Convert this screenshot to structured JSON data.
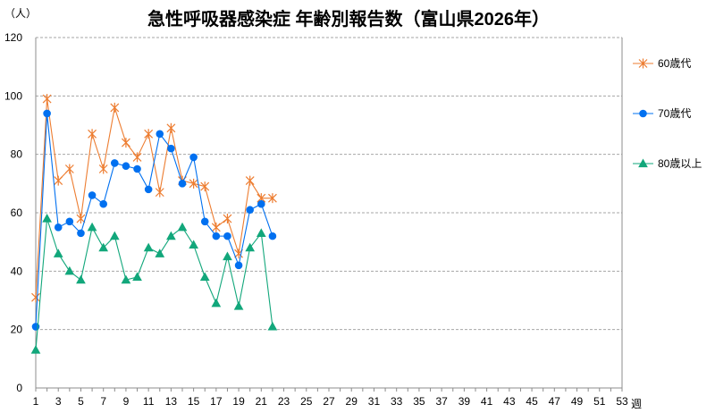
{
  "chart_data": {
    "type": "line",
    "title": "急性呼吸器感染症 年齢別報告数（富山県2026年）",
    "y_unit": "（人）",
    "x_unit": "週",
    "ylim": [
      0,
      120
    ],
    "yticks": [
      0,
      20,
      40,
      60,
      80,
      100,
      120
    ],
    "xlim": [
      1,
      53
    ],
    "xticks": [
      1,
      3,
      5,
      7,
      9,
      11,
      13,
      15,
      17,
      19,
      21,
      23,
      25,
      27,
      29,
      31,
      33,
      35,
      37,
      39,
      41,
      43,
      45,
      47,
      49,
      51,
      53
    ],
    "grid": "horizontal dashed",
    "legend_position": "right",
    "series": [
      {
        "name": "60歳代",
        "color": "#ED7D31",
        "marker": "asterisk",
        "x": [
          1,
          2,
          3,
          4,
          5,
          6,
          7,
          8,
          9,
          10,
          11,
          12,
          13,
          14,
          15,
          16,
          17,
          18,
          19,
          20,
          21,
          22
        ],
        "values": [
          31,
          99,
          71,
          75,
          58,
          87,
          75,
          96,
          84,
          79,
          87,
          67,
          89,
          71,
          70,
          69,
          55,
          58,
          46,
          71,
          65,
          65
        ]
      },
      {
        "name": "70歳代",
        "color": "#0070F0",
        "marker": "circle",
        "x": [
          1,
          2,
          3,
          4,
          5,
          6,
          7,
          8,
          9,
          10,
          11,
          12,
          13,
          14,
          15,
          16,
          17,
          18,
          19,
          20,
          21,
          22
        ],
        "values": [
          21,
          94,
          55,
          57,
          53,
          66,
          63,
          77,
          76,
          75,
          68,
          87,
          82,
          70,
          79,
          57,
          52,
          52,
          42,
          61,
          63,
          52
        ]
      },
      {
        "name": "80歳以上",
        "color": "#12A77B",
        "marker": "triangle",
        "x": [
          1,
          2,
          3,
          4,
          5,
          6,
          7,
          8,
          9,
          10,
          11,
          12,
          13,
          14,
          15,
          16,
          17,
          18,
          19,
          20,
          21,
          22
        ],
        "values": [
          13,
          58,
          46,
          40,
          37,
          55,
          48,
          52,
          37,
          38,
          48,
          46,
          52,
          55,
          49,
          38,
          29,
          45,
          28,
          48,
          53,
          21
        ]
      }
    ]
  }
}
